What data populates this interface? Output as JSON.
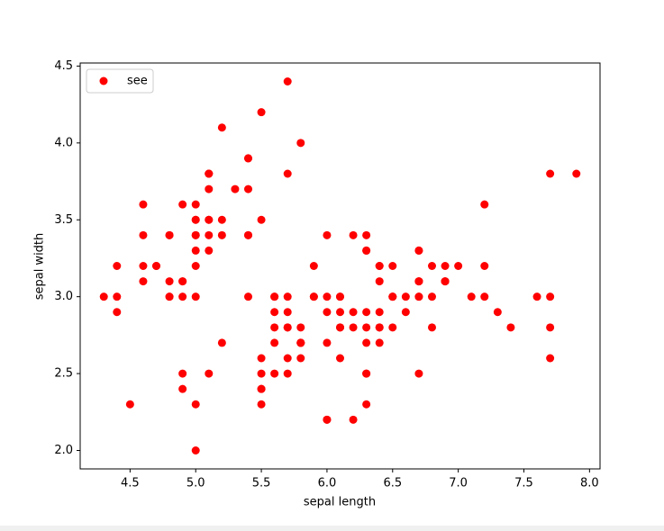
{
  "chart_data": {
    "type": "scatter",
    "x_label": "sepal length",
    "y_label": "sepal width",
    "x": [
      5.1,
      4.9,
      4.7,
      4.6,
      5.0,
      5.4,
      4.6,
      5.0,
      4.4,
      4.9,
      5.4,
      4.8,
      4.8,
      4.3,
      5.8,
      5.7,
      5.4,
      5.1,
      5.7,
      5.1,
      5.4,
      5.1,
      4.6,
      5.1,
      4.8,
      5.0,
      5.0,
      5.2,
      5.2,
      4.7,
      4.8,
      5.4,
      5.2,
      5.5,
      4.9,
      5.0,
      5.5,
      4.9,
      4.4,
      5.1,
      5.0,
      4.5,
      4.4,
      5.0,
      5.1,
      4.8,
      5.1,
      4.6,
      5.3,
      5.0,
      7.0,
      6.4,
      6.9,
      5.5,
      6.5,
      5.7,
      6.3,
      4.9,
      6.6,
      5.2,
      5.0,
      5.9,
      6.0,
      6.1,
      5.6,
      6.7,
      5.6,
      5.8,
      6.2,
      5.6,
      5.9,
      6.1,
      6.3,
      6.1,
      6.4,
      6.6,
      6.8,
      6.7,
      6.0,
      5.7,
      5.5,
      5.5,
      5.8,
      6.0,
      5.4,
      6.0,
      6.7,
      6.3,
      5.6,
      5.5,
      5.5,
      6.1,
      5.8,
      5.0,
      5.6,
      5.7,
      5.7,
      6.2,
      5.1,
      5.7,
      6.3,
      5.8,
      7.1,
      6.3,
      6.5,
      7.6,
      4.9,
      7.3,
      6.7,
      7.2,
      6.5,
      6.4,
      6.8,
      5.7,
      5.8,
      6.4,
      6.5,
      7.7,
      7.7,
      6.0,
      6.9,
      5.6,
      7.7,
      6.3,
      6.7,
      7.2,
      6.2,
      6.1,
      6.4,
      7.2,
      7.4,
      7.9,
      6.4,
      6.3,
      6.1,
      7.7,
      6.3,
      6.4,
      6.0,
      6.9,
      6.7,
      6.9,
      5.8,
      6.8,
      6.7,
      6.7,
      6.3,
      6.5,
      6.2,
      5.9
    ],
    "series": [
      {
        "name": "see",
        "color": "#ff0000",
        "values": [
          3.5,
          3.0,
          3.2,
          3.1,
          3.6,
          3.9,
          3.4,
          3.4,
          2.9,
          3.1,
          3.7,
          3.4,
          3.0,
          3.0,
          4.0,
          4.4,
          3.9,
          3.5,
          3.8,
          3.8,
          3.4,
          3.7,
          3.6,
          3.3,
          3.4,
          3.0,
          3.4,
          3.5,
          3.4,
          3.2,
          3.1,
          3.4,
          4.1,
          4.2,
          3.1,
          3.2,
          3.5,
          3.6,
          3.0,
          3.4,
          3.5,
          2.3,
          3.2,
          3.5,
          3.8,
          3.0,
          3.8,
          3.2,
          3.7,
          3.3,
          3.2,
          3.2,
          3.1,
          2.3,
          2.8,
          2.8,
          3.3,
          2.4,
          2.9,
          2.7,
          2.0,
          3.0,
          2.2,
          2.9,
          2.9,
          3.1,
          3.0,
          2.7,
          2.2,
          2.5,
          3.2,
          2.8,
          2.5,
          2.8,
          2.9,
          3.0,
          2.8,
          3.0,
          2.9,
          2.6,
          2.4,
          2.4,
          2.7,
          2.7,
          3.0,
          3.4,
          3.1,
          2.3,
          3.0,
          2.5,
          2.6,
          3.0,
          2.6,
          2.3,
          2.7,
          3.0,
          2.9,
          2.9,
          2.5,
          2.8,
          3.3,
          2.7,
          3.0,
          2.9,
          3.0,
          3.0,
          2.5,
          2.9,
          2.5,
          3.6,
          3.2,
          2.7,
          3.0,
          2.5,
          2.8,
          3.2,
          3.0,
          3.8,
          2.6,
          2.2,
          3.2,
          2.8,
          2.8,
          2.7,
          3.3,
          3.2,
          2.8,
          3.0,
          2.8,
          3.0,
          2.8,
          3.8,
          2.8,
          2.8,
          2.6,
          3.0,
          3.4,
          3.1,
          3.0,
          3.1,
          3.1,
          3.1,
          2.7,
          3.2,
          3.3,
          3.0,
          2.5,
          3.0,
          3.4,
          3.0
        ]
      }
    ],
    "xlim": [
      4.12,
      8.08
    ],
    "xticks": [
      4.5,
      {
        "value": 5,
        "label": "5.0"
      },
      5.5,
      {
        "value": 6,
        "label": "6.0"
      },
      6.5,
      {
        "value": 7,
        "label": "7.0"
      },
      7.5,
      {
        "value": 8,
        "label": "8.0"
      }
    ],
    "ylim": [
      1.88,
      4.52
    ],
    "yticks": [
      {
        "value": 2,
        "label": "2.0"
      },
      2.5,
      {
        "value": 3,
        "label": "3.0"
      },
      3.5,
      {
        "value": 4,
        "label": "4.0"
      },
      4.5
    ],
    "grid": false,
    "legend": "upper left"
  }
}
